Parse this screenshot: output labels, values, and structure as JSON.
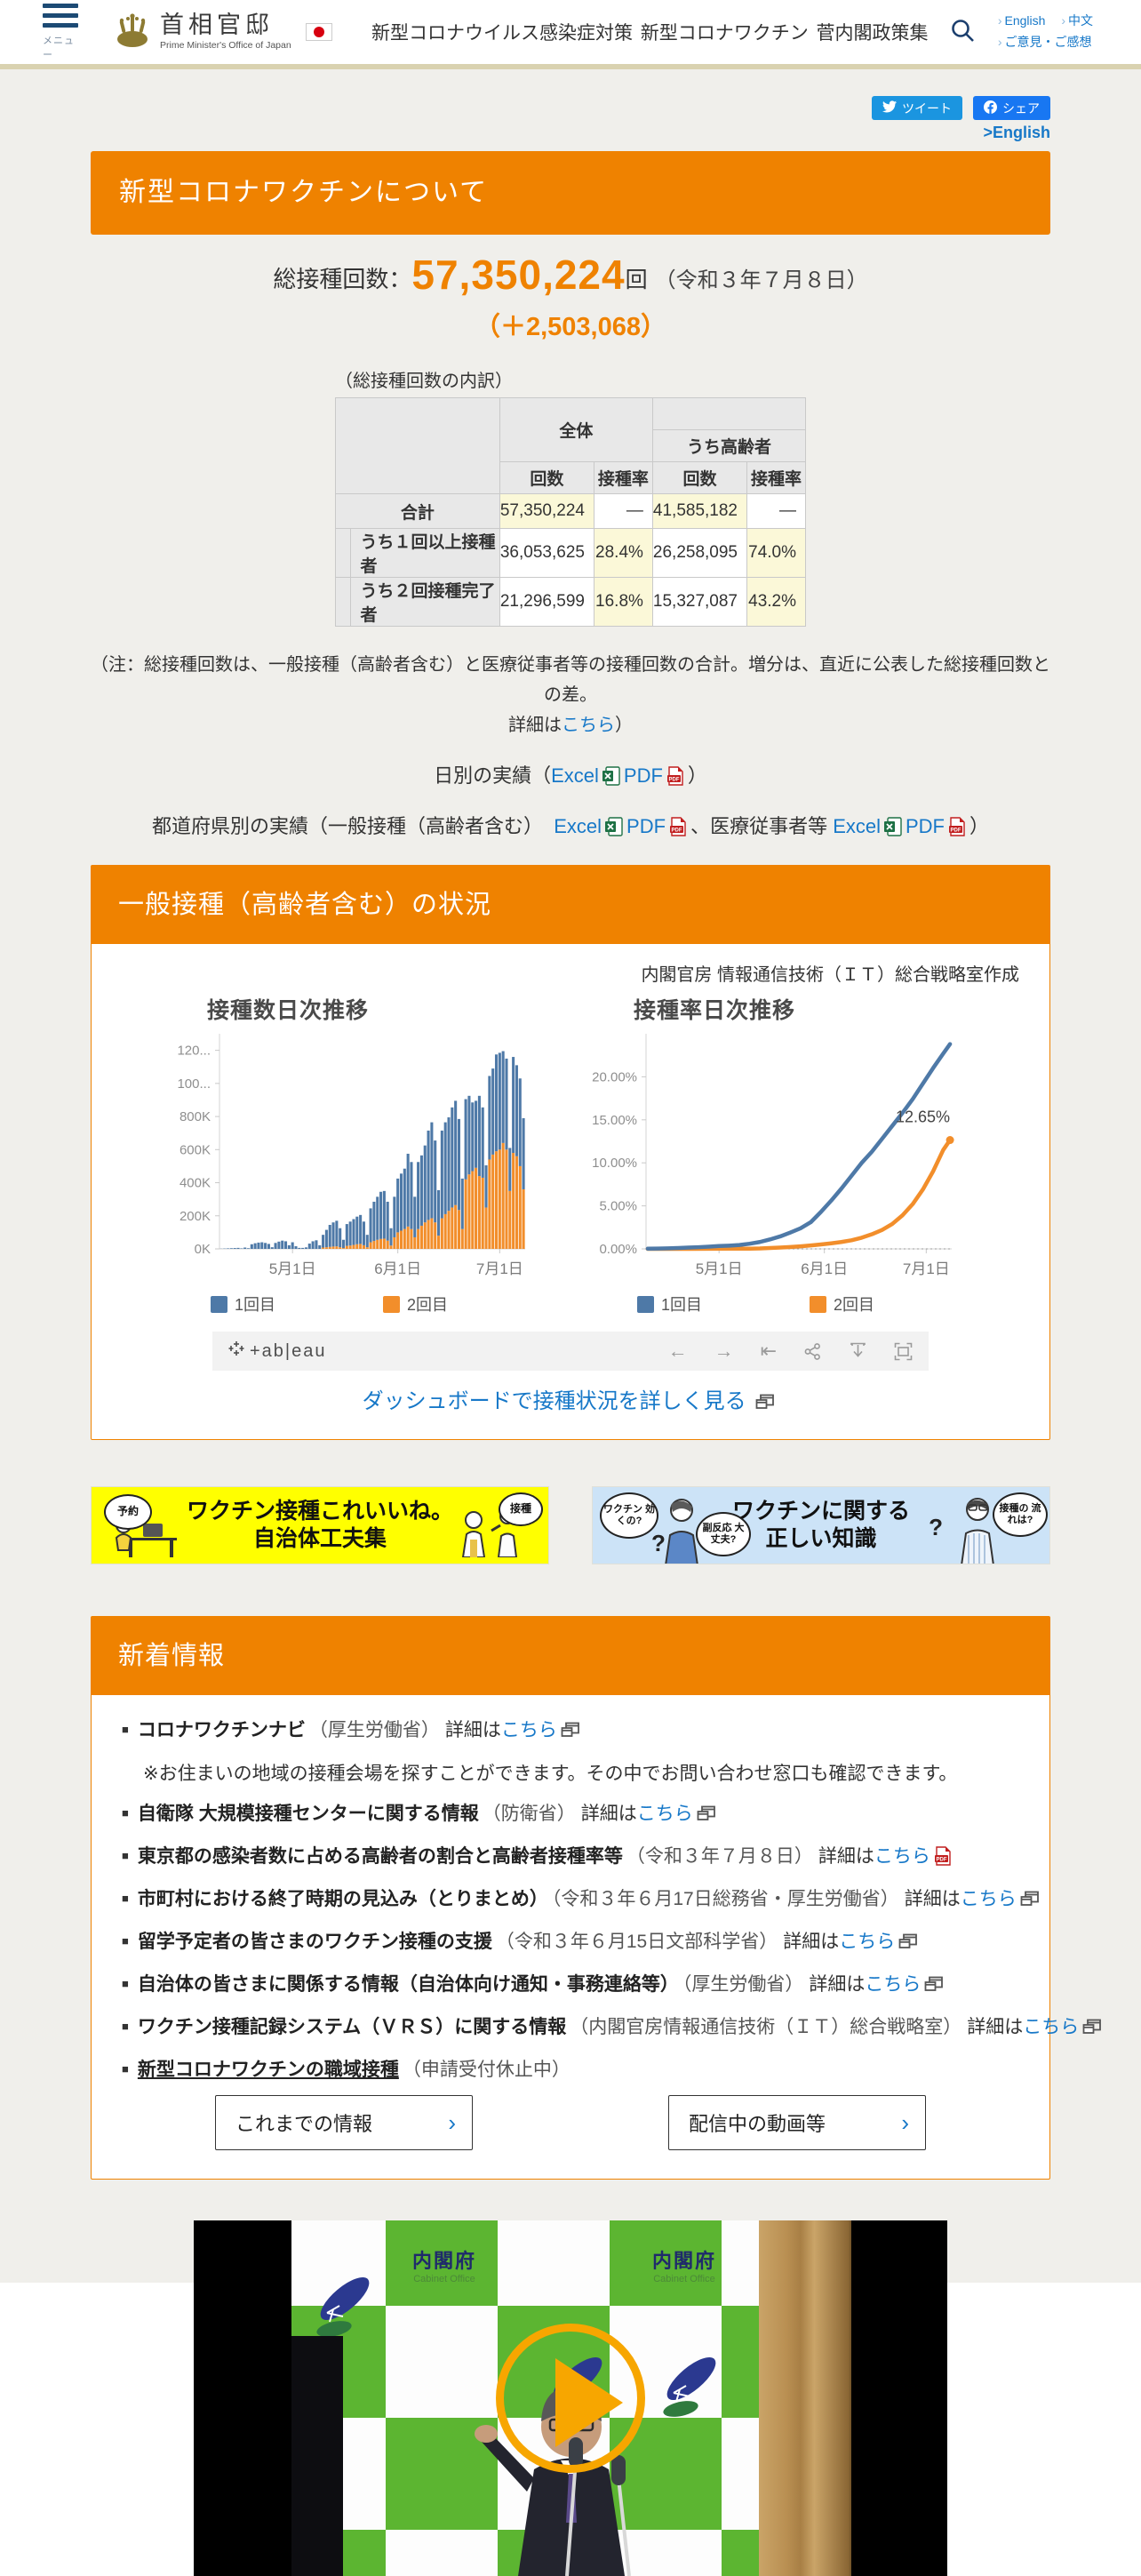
{
  "header": {
    "menu_label": "メニュー",
    "logo_title": "首相官邸",
    "logo_subtitle": "Prime Minister's Office of Japan",
    "nav": [
      "新型コロナウイルス感染症対策",
      "新型コロナワクチン",
      "菅内閣政策集"
    ],
    "link_english": "English",
    "link_chinese": "中文",
    "link_feedback": "ご意見・ご感想"
  },
  "social": {
    "tweet": "ツイート",
    "share": "シェア",
    "english_link": ">English"
  },
  "page_title": "新型コロナワクチンについて",
  "stats": {
    "label": "総接種回数：",
    "value": "57,350,224",
    "unit": "回",
    "date": "（令和３年７月８日）",
    "delta": "（＋2,503,068）"
  },
  "breakdown": {
    "caption": "（総接種回数の内訳）",
    "group_all": "全体",
    "group_elderly": "うち高齢者",
    "col_count": "回数",
    "col_rate": "接種率",
    "rows": [
      {
        "label": "合計",
        "all_count": "57,350,224",
        "all_rate": "—",
        "eld_count": "41,585,182",
        "eld_rate": "—"
      },
      {
        "label": "うち１回以上接種者",
        "all_count": "36,053,625",
        "all_rate": "28.4%",
        "eld_count": "26,258,095",
        "eld_rate": "74.0%"
      },
      {
        "label": "うち２回接種完了者",
        "all_count": "21,296,599",
        "all_rate": "16.8%",
        "eld_count": "15,327,087",
        "eld_rate": "43.2%"
      }
    ]
  },
  "note": {
    "line1": "（注：総接種回数は、一般接種（高齢者含む）と医療従事者等の接種回数の合計。増分は、直近に公表した総接種回数との差。",
    "line2_pre": "詳細は",
    "link": "こちら",
    "line2_post": "）"
  },
  "daily_links": {
    "label": "日別の実績",
    "open": "（",
    "excel": "Excel",
    "pdf": "PDF",
    "close": "）"
  },
  "pref_links": {
    "label": "都道府県別の実績",
    "open": "（",
    "sub1": "一般接種（高齢者含む）",
    "excel1": "Excel",
    "pdf1": "PDF",
    "sep": "、",
    "sub2": "医療従事者等",
    "excel2": "Excel",
    "pdf2": "PDF",
    "close": "）"
  },
  "vaccination_section": {
    "title": "一般接種（高齢者含む）の状況",
    "credit": "内閣官房 情報通信技術（ＩＴ）総合戦略室作成",
    "tableau_logo": "+ab|eau",
    "dashboard_link": "ダッシュボードで接種状況を詳しく見る"
  },
  "chart_data": [
    {
      "type": "bar",
      "title": "接種数日次推移",
      "stacked": true,
      "x_range": "2021-04-10 〜 2021-07-08 (daily)",
      "ylim": [
        0,
        1300
      ],
      "value_unit": "thousand doses per day",
      "yticks": [
        {
          "v": 0,
          "label": "0K"
        },
        {
          "v": 200,
          "label": "200K"
        },
        {
          "v": 400,
          "label": "400K"
        },
        {
          "v": 600,
          "label": "600K"
        },
        {
          "v": 800,
          "label": "800K"
        },
        {
          "v": 1000,
          "label": "100..."
        },
        {
          "v": 1200,
          "label": "120..."
        }
      ],
      "xticks": [
        {
          "i": 21,
          "label": "5月1日"
        },
        {
          "i": 52,
          "label": "6月1日"
        },
        {
          "i": 82,
          "label": "7月1日"
        }
      ],
      "series": [
        {
          "name": "1回目",
          "color": "#4e79a7",
          "values": [
            1,
            2,
            3,
            4,
            5,
            6,
            3,
            8,
            4,
            28,
            34,
            38,
            40,
            36,
            30,
            10,
            36,
            44,
            50,
            46,
            22,
            40,
            16,
            6,
            6,
            9,
            32,
            46,
            52,
            22,
            77,
            105,
            133,
            146,
            155,
            115,
            50,
            132,
            145,
            156,
            167,
            175,
            143,
            75,
            205,
            237,
            260,
            285,
            288,
            235,
            105,
            245,
            325,
            345,
            365,
            440,
            405,
            245,
            405,
            425,
            465,
            540,
            580,
            495,
            275,
            530,
            555,
            565,
            605,
            630,
            550,
            305,
            485,
            475,
            415,
            405,
            485,
            425,
            255,
            505,
            520,
            585,
            585,
            555,
            550,
            260,
            580,
            550,
            530,
            430
          ]
        },
        {
          "name": "2回目",
          "color": "#f28e2b",
          "values": [
            0,
            0,
            0,
            0,
            0,
            0,
            0,
            0,
            0,
            0,
            0,
            0,
            0,
            0,
            0,
            0,
            0,
            0,
            0,
            0,
            0,
            0,
            0,
            0,
            0,
            0,
            0,
            0,
            0,
            0,
            8,
            10,
            12,
            14,
            15,
            10,
            5,
            18,
            20,
            24,
            28,
            30,
            22,
            10,
            40,
            48,
            55,
            60,
            62,
            50,
            20,
            70,
            100,
            110,
            120,
            135,
            120,
            70,
            120,
            140,
            160,
            175,
            185,
            160,
            80,
            185,
            210,
            230,
            250,
            265,
            235,
            120,
            420,
            450,
            470,
            490,
            440,
            430,
            250,
            540,
            570,
            590,
            600,
            640,
            600,
            350,
            580,
            560,
            500,
            360
          ]
        }
      ]
    },
    {
      "type": "line",
      "title": "接種率日次推移",
      "ylim": [
        0,
        25
      ],
      "yticks": [
        {
          "v": 0,
          "label": "0.00%"
        },
        {
          "v": 5,
          "label": "5.00%"
        },
        {
          "v": 10,
          "label": "10.00%"
        },
        {
          "v": 15,
          "label": "15.00%"
        },
        {
          "v": 20,
          "label": "20.00%"
        }
      ],
      "xticks": [
        {
          "i": 21,
          "label": "5月1日"
        },
        {
          "i": 52,
          "label": "6月1日"
        },
        {
          "i": 82,
          "label": "7月1日"
        }
      ],
      "annotation": "12.65%",
      "series": [
        {
          "name": "1回目",
          "color": "#4e79a7",
          "points": [
            [
              0,
              0.02
            ],
            [
              3,
              0.04
            ],
            [
              6,
              0.06
            ],
            [
              9,
              0.1
            ],
            [
              12,
              0.15
            ],
            [
              15,
              0.2
            ],
            [
              18,
              0.26
            ],
            [
              21,
              0.33
            ],
            [
              24,
              0.38
            ],
            [
              27,
              0.45
            ],
            [
              30,
              0.6
            ],
            [
              33,
              0.8
            ],
            [
              36,
              1.1
            ],
            [
              39,
              1.45
            ],
            [
              42,
              1.9
            ],
            [
              45,
              2.4
            ],
            [
              48,
              3.1
            ],
            [
              51,
              4.3
            ],
            [
              54,
              5.6
            ],
            [
              57,
              7.0
            ],
            [
              60,
              8.5
            ],
            [
              63,
              10.0
            ],
            [
              66,
              11.3
            ],
            [
              69,
              12.8
            ],
            [
              72,
              14.3
            ],
            [
              75,
              15.8
            ],
            [
              78,
              17.4
            ],
            [
              81,
              19.2
            ],
            [
              84,
              21.0
            ],
            [
              87,
              22.7
            ],
            [
              89,
              23.8
            ]
          ]
        },
        {
          "name": "2回目",
          "color": "#f28e2b",
          "points": [
            [
              0,
              0
            ],
            [
              6,
              0
            ],
            [
              12,
              0
            ],
            [
              18,
              0.01
            ],
            [
              24,
              0.02
            ],
            [
              30,
              0.03
            ],
            [
              33,
              0.05
            ],
            [
              36,
              0.1
            ],
            [
              39,
              0.15
            ],
            [
              42,
              0.22
            ],
            [
              45,
              0.3
            ],
            [
              48,
              0.4
            ],
            [
              51,
              0.52
            ],
            [
              54,
              0.65
            ],
            [
              57,
              0.8
            ],
            [
              60,
              1.0
            ],
            [
              63,
              1.3
            ],
            [
              66,
              1.7
            ],
            [
              69,
              2.2
            ],
            [
              72,
              2.9
            ],
            [
              75,
              3.9
            ],
            [
              78,
              5.2
            ],
            [
              81,
              6.9
            ],
            [
              84,
              9.0
            ],
            [
              87,
              11.5
            ],
            [
              89,
              12.65
            ]
          ]
        }
      ]
    }
  ],
  "banners": [
    {
      "bubble_left": "予約",
      "line1": "ワクチン接種これいいね。",
      "line2": "自治体工夫集",
      "bubble_right": "接種",
      "bg": "#ffff00"
    },
    {
      "bubble_left1": "ワクチン 効くの?",
      "bubble_left2": "副反応 大丈夫?",
      "line1": "ワクチンに関する",
      "line2": "正しい知識",
      "bubble_right": "接種の 流れは?",
      "bg": "#cce3f7"
    }
  ],
  "news": {
    "title": "新着情報",
    "items": [
      {
        "title": "コロナワクチンナビ",
        "meta": "（厚生労働省）",
        "detail": "詳細は",
        "link": "こちら",
        "note": "※お住まいの地域の接種会場を探すことができます。その中でお問い合わせ窓口も確認できます。"
      },
      {
        "title": "自衛隊 大規模接種センターに関する情報",
        "meta": "（防衛省）",
        "detail": "詳細は",
        "link": "こちら"
      },
      {
        "title": "東京都の感染者数に占める高齢者の割合と高齢者接種率等",
        "meta": "（令和３年７月８日）",
        "detail": "詳細は",
        "link": "こちら"
      },
      {
        "title": "市町村における終了時期の見込み（とりまとめ）",
        "meta": "（令和３年６月17日総務省・厚生労働省）",
        "detail": "詳細は",
        "link": "こちら"
      },
      {
        "title": "留学予定者の皆さまのワクチン接種の支援",
        "meta": "（令和３年６月15日文部科学省）",
        "detail": "詳細は",
        "link": "こちら"
      },
      {
        "title": "自治体の皆さまに関係する情報（自治体向け通知・事務連絡等）",
        "meta": "（厚生労働省）",
        "detail": "詳細は",
        "link": "こちら"
      },
      {
        "title": "ワクチン接種記録システム（ＶＲＳ）に関する情報",
        "meta": "（内閣官房情報通信技術（ＩＴ）総合戦略室）",
        "detail": "詳細は",
        "link": "こちら"
      },
      {
        "title": "新型コロナワクチンの職域接種",
        "meta": "（申請受付休止中）"
      }
    ]
  },
  "buttons": {
    "history": "これまでの情報",
    "videos": "配信中の動画等",
    "chevron": "›"
  },
  "video": {
    "agency": "内閣府",
    "agency_en": "Cabinet Office"
  },
  "colors": {
    "accent_orange": "#ef8200",
    "link_blue": "#1778c8",
    "tweet_blue": "#1b95e0",
    "share_blue": "#1877f2",
    "bar_blue": "#4e79a7",
    "bar_orange": "#f28e2b",
    "highlight_yellow": "#fbf8d8",
    "banner_yellow": "#ffff00",
    "banner_blue": "#cce3f7"
  }
}
